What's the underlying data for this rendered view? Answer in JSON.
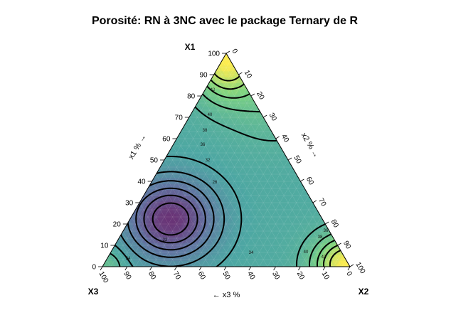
{
  "chart_data": {
    "type": "heatmap",
    "title": "Porosité: RN à 3NC avec le package Ternary de R",
    "corner_labels": {
      "top": "X1",
      "right": "X2",
      "left": "X3"
    },
    "axis_labels": {
      "x1": "x1 % →",
      "x2": "x2 % →",
      "x3": "← x3 %"
    },
    "ticks": {
      "x1": [
        "0",
        "10",
        "20",
        "30",
        "40",
        "50",
        "60",
        "70",
        "80",
        "90",
        "100"
      ],
      "x2": [
        "0",
        "10",
        "20",
        "30",
        "40",
        "50",
        "60",
        "70",
        "80",
        "90",
        "100"
      ],
      "x3": [
        "100",
        "90",
        "80",
        "70",
        "60",
        "50",
        "40",
        "30",
        "20",
        "10",
        "0"
      ]
    },
    "contour_levels": [
      22,
      24,
      26,
      28,
      30,
      32,
      34,
      36,
      38,
      40,
      42
    ],
    "contour_labels_shown": [
      "42",
      "40",
      "38",
      "36",
      "32",
      "26",
      "22",
      "24",
      "34",
      "38",
      "36",
      "40",
      "42"
    ],
    "colormap": [
      "#440154",
      "#3b528b",
      "#21918c",
      "#5ec962",
      "#fde725"
    ],
    "value_range": [
      20,
      45
    ],
    "grid": true
  }
}
